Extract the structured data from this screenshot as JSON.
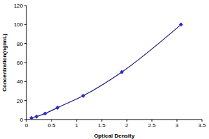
{
  "chart_data": {
    "type": "scatter",
    "x_label": "Optical Density",
    "y_label": "Concentration(ng/mL)",
    "x": [
      0.1,
      0.2,
      0.37,
      0.62,
      1.13,
      1.9,
      3.08
    ],
    "values": [
      1.6,
      3.1,
      6.3,
      12.5,
      25,
      50,
      100
    ],
    "color": "#1a1a80",
    "marker": "diamond",
    "line_style": "solid",
    "xlim": [
      0,
      3.5
    ],
    "xticks": [
      0,
      0.5,
      1,
      1.5,
      2,
      2.5,
      3,
      3.5
    ],
    "ylim": [
      0,
      120
    ],
    "yticks": [
      0,
      20,
      40,
      60,
      80,
      100,
      120
    ],
    "grid": false
  }
}
